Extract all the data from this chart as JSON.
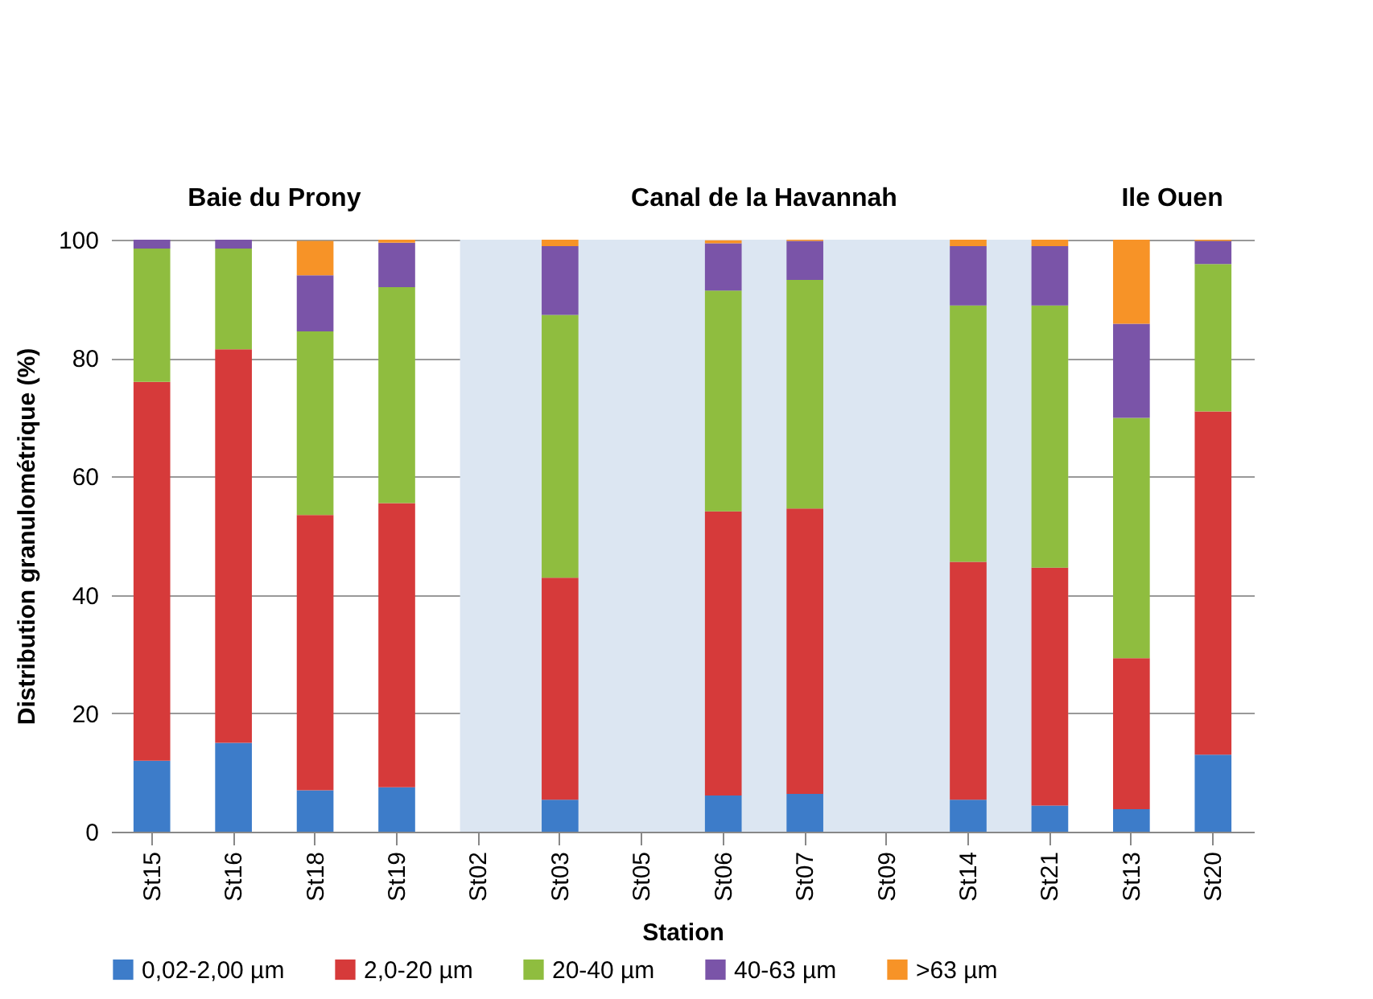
{
  "chart_data": {
    "type": "bar",
    "stacked": true,
    "xlabel": "Station",
    "ylabel": "Distribution granulométrique (%)",
    "categories": [
      "St15",
      "St16",
      "St18",
      "St19",
      "St02",
      "St03",
      "St05",
      "St06",
      "St07",
      "St09",
      "St14",
      "St21",
      "St13",
      "St20"
    ],
    "series": [
      {
        "name": "0,02-2,00 µm",
        "color": "#3d7cc9",
        "values": [
          12,
          15,
          7,
          7.5,
          null,
          5.4,
          null,
          6.1,
          6.4,
          null,
          5.4,
          4.4,
          3.8,
          13
        ]
      },
      {
        "name": "2,0-20 µm",
        "color": "#d63a3a",
        "values": [
          64,
          66.5,
          46.5,
          48,
          null,
          37.5,
          null,
          48,
          48.2,
          null,
          40.2,
          40.2,
          25.5,
          58
        ]
      },
      {
        "name": "20-40 µm",
        "color": "#8fbd3f",
        "values": [
          22.5,
          17,
          31,
          36.5,
          null,
          44.4,
          null,
          37.3,
          38.6,
          null,
          43.3,
          44.3,
          40.6,
          24.9
        ]
      },
      {
        "name": "40-63 µm",
        "color": "#7a54a8",
        "values": [
          1.5,
          1.5,
          9.5,
          7.5,
          null,
          11.6,
          null,
          8,
          6.6,
          null,
          10,
          10,
          15.9,
          3.9
        ]
      },
      {
        "name": ">63 µm",
        "color": "#f79327",
        "values": [
          0,
          0,
          5.8,
          0.5,
          null,
          1.1,
          null,
          0.5,
          0.2,
          null,
          1.1,
          1.1,
          14.2,
          0.2
        ]
      }
    ],
    "ylim": [
      0,
      100
    ],
    "yticks": [
      0,
      20,
      40,
      60,
      80,
      100
    ],
    "grid": "y",
    "legend": "bottom",
    "bands": [
      {
        "axis": "x",
        "from": "St02",
        "to": "St21",
        "color": "#dce6f2"
      }
    ],
    "annotations": [
      "Baie du Prony",
      "Canal de la Havannah",
      "Ile Ouen"
    ]
  }
}
